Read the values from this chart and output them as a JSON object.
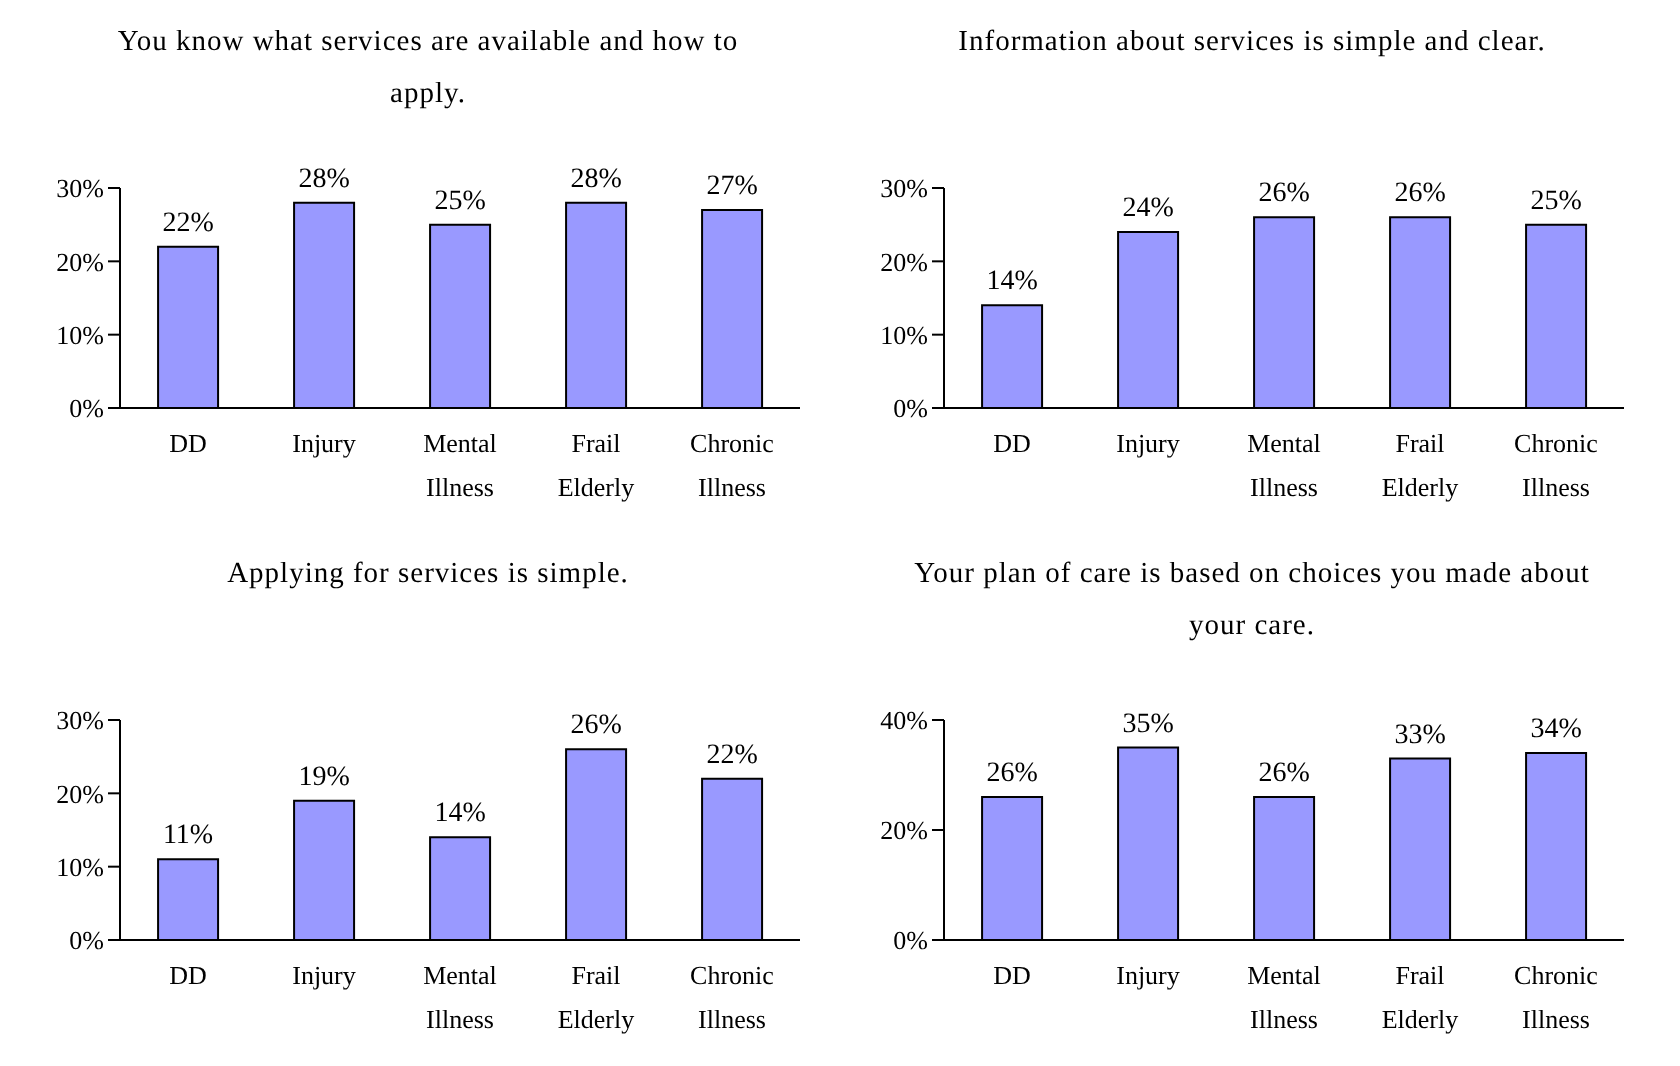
{
  "chart_data": [
    {
      "type": "bar",
      "title": "You know what services are available and how to apply.",
      "categories": [
        "DD",
        "Injury",
        "Mental Illness",
        "Frail Elderly",
        "Chronic Illness"
      ],
      "values": [
        22,
        28,
        25,
        28,
        27
      ],
      "value_labels": [
        "22%",
        "28%",
        "25%",
        "28%",
        "27%"
      ],
      "color": "#9999ff",
      "ylim": [
        0,
        30
      ],
      "yticks": [
        {
          "value": 0,
          "label": "0%"
        },
        {
          "value": 10,
          "label": "10%"
        },
        {
          "value": 20,
          "label": "20%"
        },
        {
          "value": 30,
          "label": "30%"
        }
      ],
      "grid": false
    },
    {
      "type": "bar",
      "title": "Information about services is simple and clear.",
      "categories": [
        "DD",
        "Injury",
        "Mental Illness",
        "Frail Elderly",
        "Chronic Illness"
      ],
      "values": [
        14,
        24,
        26,
        26,
        25
      ],
      "value_labels": [
        "14%",
        "24%",
        "26%",
        "26%",
        "25%"
      ],
      "color": "#9999ff",
      "ylim": [
        0,
        30
      ],
      "yticks": [
        {
          "value": 0,
          "label": "0%"
        },
        {
          "value": 10,
          "label": "10%"
        },
        {
          "value": 20,
          "label": "20%"
        },
        {
          "value": 30,
          "label": "30%"
        }
      ],
      "grid": false
    },
    {
      "type": "bar",
      "title": "Applying for services is simple.",
      "categories": [
        "DD",
        "Injury",
        "Mental Illness",
        "Frail Elderly",
        "Chronic Illness"
      ],
      "values": [
        11,
        19,
        14,
        26,
        22
      ],
      "value_labels": [
        "11%",
        "19%",
        "14%",
        "26%",
        "22%"
      ],
      "color": "#9999ff",
      "ylim": [
        0,
        30
      ],
      "yticks": [
        {
          "value": 0,
          "label": "0%"
        },
        {
          "value": 10,
          "label": "10%"
        },
        {
          "value": 20,
          "label": "20%"
        },
        {
          "value": 30,
          "label": "30%"
        }
      ],
      "grid": false
    },
    {
      "type": "bar",
      "title": "Your plan of care is based on choices you made about your care.",
      "categories": [
        "DD",
        "Injury",
        "Mental Illness",
        "Frail Elderly",
        "Chronic Illness"
      ],
      "values": [
        26,
        35,
        26,
        33,
        34
      ],
      "value_labels": [
        "26%",
        "35%",
        "26%",
        "33%",
        "34%"
      ],
      "color": "#9999ff",
      "ylim": [
        0,
        40
      ],
      "yticks": [
        {
          "value": 0,
          "label": "0%"
        },
        {
          "value": 20,
          "label": "20%"
        },
        {
          "value": 40,
          "label": "40%"
        }
      ],
      "grid": false
    }
  ]
}
